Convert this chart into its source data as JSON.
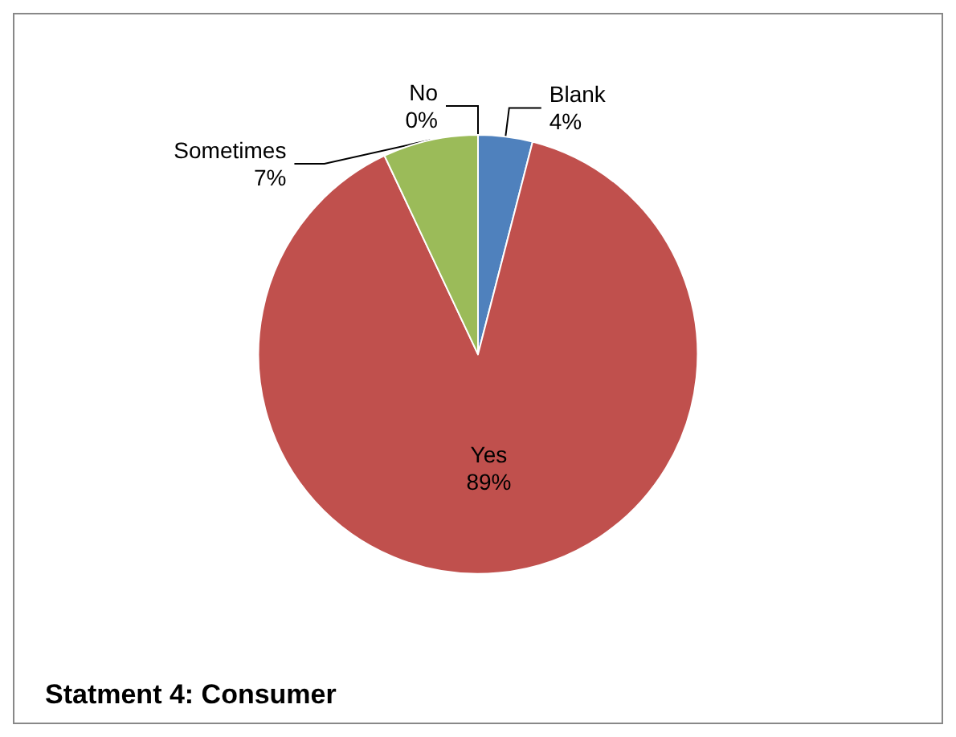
{
  "chart_data": {
    "type": "pie",
    "title": "Statment 4: Consumer",
    "categories": [
      "Blank",
      "Yes",
      "Sometimes",
      "No"
    ],
    "values": [
      4,
      89,
      7,
      0
    ],
    "colors": [
      "#4f81bd",
      "#c0504d",
      "#9bbb59",
      "#8064a2"
    ],
    "value_labels": [
      "4%",
      "89%",
      "7%",
      "0%"
    ],
    "legend": false
  }
}
